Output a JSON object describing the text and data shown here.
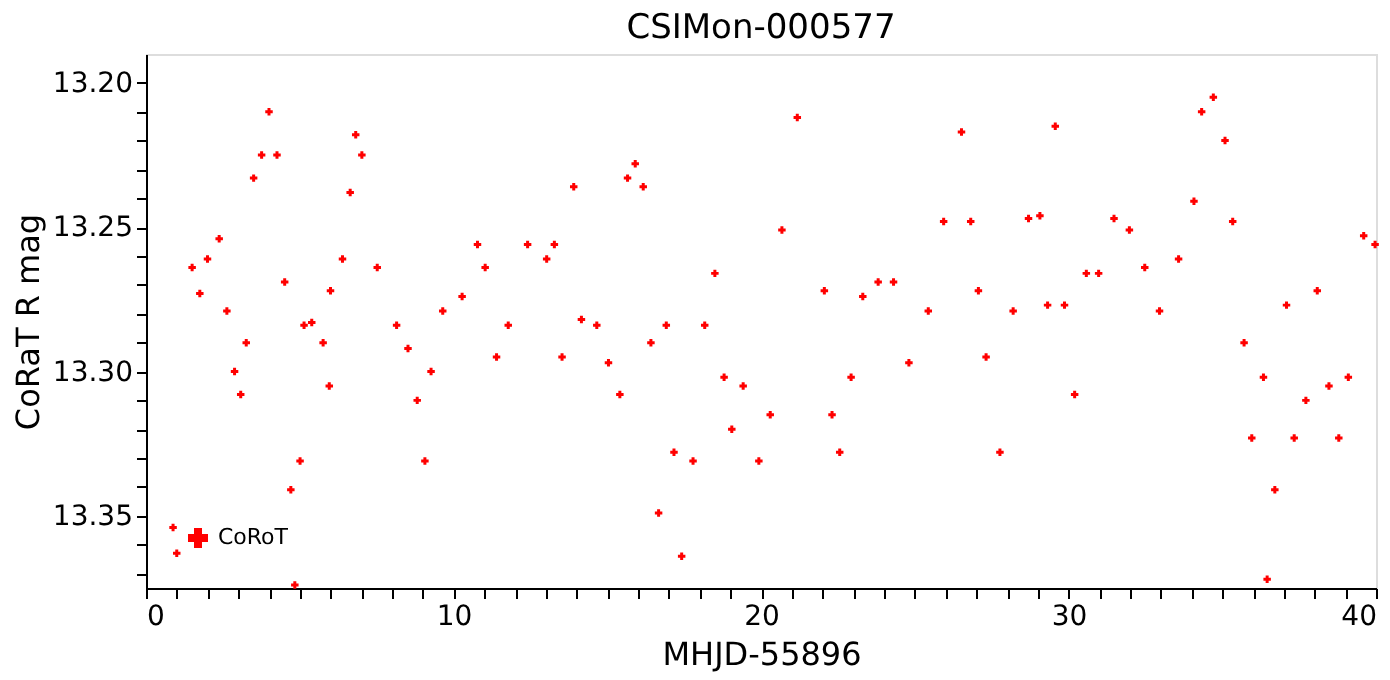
{
  "chart_data": {
    "type": "scatter",
    "title": "CSIMon-000577",
    "xlabel": "MHJD-55896",
    "ylabel": "CoRaT R mag",
    "x": [
      0.88,
      1.0,
      1.5,
      1.75,
      2.0,
      2.38,
      2.63,
      2.88,
      3.08,
      3.26,
      3.5,
      3.76,
      4.0,
      4.26,
      4.51,
      4.71,
      4.84,
      5.01,
      5.14,
      5.39,
      5.76,
      5.96,
      6.0,
      6.39,
      6.64,
      6.82,
      7.02,
      7.52,
      8.15,
      8.52,
      8.82,
      9.07,
      9.27,
      9.65,
      10.28,
      10.78,
      11.03,
      11.4,
      11.78,
      12.41,
      13.03,
      13.28,
      13.53,
      13.91,
      14.16,
      14.66,
      15.04,
      15.41,
      15.66,
      15.91,
      16.17,
      16.42,
      16.67,
      16.92,
      17.17,
      17.42,
      17.79,
      18.17,
      18.5,
      18.8,
      19.05,
      19.42,
      19.93,
      20.3,
      20.68,
      21.18,
      22.06,
      22.31,
      22.56,
      22.93,
      23.31,
      23.81,
      24.31,
      24.81,
      25.44,
      25.94,
      26.52,
      26.82,
      27.07,
      27.32,
      27.77,
      28.2,
      28.7,
      29.07,
      29.32,
      29.57,
      29.87,
      30.2,
      30.58,
      30.98,
      31.48,
      31.98,
      32.48,
      32.96,
      33.58,
      34.08,
      34.33,
      34.71,
      35.09,
      35.34,
      35.71,
      35.96,
      36.34,
      36.46,
      36.71,
      37.09,
      37.34,
      37.72,
      38.09,
      38.47,
      38.79,
      39.1,
      39.6,
      39.97
    ],
    "series": [
      {
        "name": "CoRoT",
        "color": "#ff0000",
        "values": [
          13.354,
          13.363,
          13.264,
          13.273,
          13.261,
          13.254,
          13.279,
          13.3,
          13.308,
          13.29,
          13.233,
          13.225,
          13.21,
          13.225,
          13.269,
          13.341,
          13.374,
          13.331,
          13.284,
          13.283,
          13.29,
          13.305,
          13.272,
          13.261,
          13.238,
          13.218,
          13.225,
          13.264,
          13.284,
          13.292,
          13.31,
          13.331,
          13.3,
          13.279,
          13.274,
          13.256,
          13.264,
          13.295,
          13.284,
          13.256,
          13.261,
          13.256,
          13.295,
          13.236,
          13.282,
          13.284,
          13.297,
          13.308,
          13.233,
          13.228,
          13.236,
          13.29,
          13.349,
          13.284,
          13.328,
          13.364,
          13.331,
          13.284,
          13.266,
          13.302,
          13.32,
          13.305,
          13.331,
          13.315,
          13.251,
          13.212,
          13.272,
          13.315,
          13.328,
          13.302,
          13.274,
          13.269,
          13.269,
          13.297,
          13.279,
          13.248,
          13.217,
          13.248,
          13.272,
          13.295,
          13.328,
          13.279,
          13.247,
          13.246,
          13.277,
          13.215,
          13.277,
          13.308,
          13.266,
          13.266,
          13.247,
          13.251,
          13.264,
          13.279,
          13.261,
          13.241,
          13.21,
          13.205,
          13.22,
          13.248,
          13.29,
          13.323,
          13.302,
          13.372,
          13.341,
          13.277,
          13.323,
          13.31,
          13.272,
          13.305,
          13.323,
          13.302,
          13.253,
          13.256
        ]
      }
    ],
    "marker": "cross",
    "legend": "bottom left",
    "grid": false,
    "xlim": [
      0,
      40
    ],
    "ylim": [
      13.375,
      13.19
    ],
    "xticks": [
      0,
      {
        "value": 1,
        "label": null
      },
      {
        "value": 2,
        "label": null
      },
      {
        "value": 3,
        "label": null
      },
      {
        "value": 4,
        "label": null
      },
      {
        "value": 5,
        "label": null
      },
      {
        "value": 6,
        "label": null
      },
      {
        "value": 7,
        "label": null
      },
      {
        "value": 8,
        "label": null
      },
      {
        "value": 9,
        "label": null
      },
      10,
      {
        "value": 11,
        "label": null
      },
      {
        "value": 12,
        "label": null
      },
      {
        "value": 13,
        "label": null
      },
      {
        "value": 14,
        "label": null
      },
      {
        "value": 15,
        "label": null
      },
      {
        "value": 16,
        "label": null
      },
      {
        "value": 17,
        "label": null
      },
      {
        "value": 18,
        "label": null
      },
      {
        "value": 19,
        "label": null
      },
      20,
      {
        "value": 21,
        "label": null
      },
      {
        "value": 22,
        "label": null
      },
      {
        "value": 23,
        "label": null
      },
      {
        "value": 24,
        "label": null
      },
      {
        "value": 25,
        "label": null
      },
      {
        "value": 26,
        "label": null
      },
      {
        "value": 27,
        "label": null
      },
      {
        "value": 28,
        "label": null
      },
      {
        "value": 29,
        "label": null
      },
      30,
      {
        "value": 31,
        "label": null
      },
      {
        "value": 32,
        "label": null
      },
      {
        "value": 33,
        "label": null
      },
      {
        "value": 34,
        "label": null
      },
      {
        "value": 35,
        "label": null
      },
      {
        "value": 36,
        "label": null
      },
      {
        "value": 37,
        "label": null
      },
      {
        "value": 38,
        "label": null
      },
      {
        "value": 39,
        "label": null
      },
      40
    ],
    "yticks": [
      {
        "value": 13.2,
        "label": "13.20"
      },
      {
        "value": 13.21,
        "label": null
      },
      {
        "value": 13.22,
        "label": null
      },
      {
        "value": 13.23,
        "label": null
      },
      {
        "value": 13.24,
        "label": null
      },
      {
        "value": 13.25,
        "label": "13.25"
      },
      {
        "value": 13.26,
        "label": null
      },
      {
        "value": 13.27,
        "label": null
      },
      {
        "value": 13.28,
        "label": null
      },
      {
        "value": 13.29,
        "label": null
      },
      {
        "value": 13.3,
        "label": "13.30"
      },
      {
        "value": 13.31,
        "label": null
      },
      {
        "value": 13.32,
        "label": null
      },
      {
        "value": 13.33,
        "label": null
      },
      {
        "value": 13.34,
        "label": null
      },
      {
        "value": 13.35,
        "label": "13.35"
      },
      {
        "value": 13.36,
        "label": null
      },
      {
        "value": 13.37,
        "label": null
      }
    ]
  }
}
